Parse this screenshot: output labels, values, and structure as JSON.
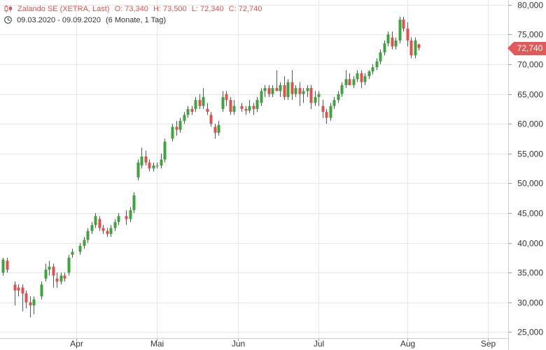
{
  "header": {
    "instrument": "Zalando SE (XETRA, Last)",
    "open": "O: 73,340",
    "high": "H: 73,500",
    "low": "L: 72,340",
    "close": "C: 72,740",
    "range": "09.03.2020 - 09.09.2020",
    "period": "(6 Monate, 1 Tag)",
    "icon_1": "chart-type-icon",
    "icon_2": "clock-icon"
  },
  "last_badge": "72,740",
  "colors": {
    "up": "#3fa33f",
    "down": "#d9534f",
    "badge": "#e05a5a",
    "grid": "#e6e6e6"
  },
  "chart_data": {
    "type": "candlestick",
    "title": "",
    "xlabel": "",
    "ylabel": "",
    "ylim": [
      24000,
      80800
    ],
    "y_ticks": [
      "25,000",
      "30,000",
      "35,000",
      "40,000",
      "45,000",
      "50,000",
      "55,000",
      "60,000",
      "65,000",
      "70,000",
      "75,000",
      "80,000"
    ],
    "y_tick_values": [
      25000,
      30000,
      35000,
      40000,
      45000,
      50000,
      55000,
      60000,
      65000,
      70000,
      75000,
      80000
    ],
    "x_ticks": [
      "Apr",
      "Mai",
      "Jun",
      "Jul",
      "Aug",
      "Sep"
    ],
    "x_tick_index": [
      19,
      40,
      61,
      82,
      105,
      126
    ],
    "grid": true,
    "series": [
      {
        "candles": [
          [
            35000,
            37500,
            34500,
            37200
          ],
          [
            37000,
            37500,
            35000,
            35500
          ],
          [
            33000,
            33500,
            29500,
            32000
          ],
          [
            32500,
            33000,
            31000,
            32000
          ],
          [
            32500,
            33000,
            28500,
            31500
          ],
          [
            31500,
            32000,
            29000,
            30000
          ],
          [
            30000,
            31000,
            27500,
            29500
          ],
          [
            29500,
            31000,
            28000,
            30500
          ],
          [
            31000,
            33500,
            30500,
            33000
          ],
          [
            34000,
            36500,
            33500,
            35500
          ],
          [
            35500,
            37000,
            34500,
            36000
          ],
          [
            36000,
            36500,
            32500,
            34500
          ],
          [
            34000,
            35000,
            32500,
            33500
          ],
          [
            33500,
            35000,
            33000,
            34500
          ],
          [
            34500,
            35000,
            33500,
            34000
          ],
          [
            35000,
            38000,
            34500,
            37500
          ],
          [
            38000,
            39000,
            37500,
            38500
          ],
          [
            38500,
            40000,
            38000,
            39500
          ],
          [
            39500,
            41000,
            39000,
            40500
          ],
          [
            40500,
            42500,
            40000,
            42000
          ],
          [
            42000,
            43500,
            41500,
            43000
          ],
          [
            43000,
            45000,
            42500,
            44500
          ],
          [
            44000,
            44500,
            42000,
            42500
          ],
          [
            42500,
            43000,
            41500,
            42000
          ],
          [
            42000,
            42500,
            41000,
            41500
          ],
          [
            41500,
            43000,
            41000,
            42500
          ],
          [
            42500,
            44000,
            42000,
            43500
          ],
          [
            43500,
            45000,
            43000,
            44500
          ],
          [
            44500,
            45500,
            43000,
            44000
          ],
          [
            44000,
            46000,
            43500,
            45500
          ],
          [
            45500,
            48500,
            45000,
            48000
          ],
          [
            51000,
            54000,
            50500,
            53500
          ],
          [
            53000,
            56000,
            52500,
            54500
          ],
          [
            54500,
            55500,
            53000,
            53500
          ],
          [
            53500,
            54000,
            52000,
            52500
          ],
          [
            52500,
            53500,
            52000,
            53000
          ],
          [
            53000,
            53500,
            52500,
            53000
          ],
          [
            53000,
            55000,
            52500,
            54000
          ],
          [
            54000,
            57500,
            53500,
            57000
          ],
          [
            57500,
            60000,
            57000,
            59500
          ],
          [
            59500,
            60500,
            58000,
            59000
          ],
          [
            59000,
            61000,
            58500,
            60500
          ],
          [
            60500,
            62000,
            60000,
            61500
          ],
          [
            61500,
            63000,
            61000,
            62500
          ],
          [
            62500,
            63000,
            61500,
            62000
          ],
          [
            62500,
            64500,
            62000,
            64000
          ],
          [
            64000,
            65000,
            62500,
            63000
          ],
          [
            63000,
            66000,
            62500,
            64500
          ],
          [
            62500,
            63500,
            61500,
            62000
          ],
          [
            61500,
            62000,
            59500,
            60000
          ],
          [
            59500,
            60000,
            57500,
            58500
          ],
          [
            58500,
            60500,
            58000,
            59800
          ],
          [
            62500,
            65500,
            62000,
            64500
          ],
          [
            65000,
            65500,
            63000,
            64000
          ],
          [
            64000,
            64500,
            61500,
            62000
          ],
          [
            62000,
            64000,
            61500,
            63000
          ],
          [
            63000,
            63500,
            62000,
            62500
          ],
          [
            62500,
            63000,
            61500,
            62200
          ],
          [
            62200,
            64000,
            61800,
            63000
          ],
          [
            63000,
            63500,
            61500,
            62500
          ],
          [
            62500,
            64500,
            62000,
            64000
          ],
          [
            63500,
            66000,
            63000,
            65500
          ],
          [
            65500,
            66500,
            64500,
            66000
          ],
          [
            66000,
            66500,
            64500,
            65000
          ],
          [
            65000,
            66500,
            64500,
            66000
          ],
          [
            66000,
            69000,
            65500,
            65500
          ],
          [
            65500,
            67000,
            64500,
            66500
          ],
          [
            66500,
            68000,
            64000,
            64500
          ],
          [
            64500,
            67500,
            64000,
            67000
          ],
          [
            67000,
            69000,
            64000,
            65000
          ],
          [
            65000,
            66500,
            64500,
            66000
          ],
          [
            66000,
            67000,
            63000,
            65000
          ],
          [
            65000,
            66000,
            63500,
            65500
          ],
          [
            65500,
            66500,
            64500,
            66000
          ],
          [
            66000,
            66500,
            62500,
            63500
          ],
          [
            63500,
            65500,
            63000,
            64500
          ],
          [
            64500,
            65500,
            63000,
            65000
          ],
          [
            63000,
            64000,
            61000,
            62000
          ],
          [
            62000,
            62500,
            60000,
            61000
          ],
          [
            61000,
            63500,
            60500,
            63000
          ],
          [
            63000,
            64500,
            62500,
            64000
          ],
          [
            64000,
            65500,
            63500,
            65000
          ],
          [
            65000,
            67000,
            64500,
            66500
          ],
          [
            66500,
            69000,
            66000,
            67500
          ],
          [
            67500,
            68500,
            66500,
            66500
          ],
          [
            66500,
            68000,
            66000,
            67500
          ],
          [
            67500,
            69000,
            67000,
            68500
          ],
          [
            68500,
            69000,
            66000,
            67000
          ],
          [
            67000,
            68500,
            66500,
            68000
          ],
          [
            68000,
            69000,
            67500,
            68800
          ],
          [
            68800,
            70000,
            68300,
            69500
          ],
          [
            69500,
            71000,
            69000,
            70500
          ],
          [
            70500,
            72500,
            70000,
            72000
          ],
          [
            72000,
            74000,
            71500,
            73500
          ],
          [
            73500,
            75500,
            73000,
            75000
          ],
          [
            74500,
            75500,
            72500,
            73000
          ],
          [
            73000,
            74500,
            72500,
            74000
          ],
          [
            74000,
            78000,
            73500,
            77500
          ],
          [
            77500,
            78000,
            75500,
            76000
          ],
          [
            76000,
            77000,
            73000,
            74000
          ],
          [
            74000,
            74500,
            71000,
            71500
          ],
          [
            71500,
            74500,
            71000,
            74000
          ],
          [
            73340,
            73500,
            72340,
            72740
          ]
        ],
        "candle_x_index": [
          0,
          1,
          3,
          4,
          5,
          6,
          7,
          8,
          10,
          11,
          12,
          13,
          14,
          15,
          16,
          17,
          18,
          20,
          21,
          22,
          23,
          24,
          25,
          26,
          27,
          28,
          29,
          30,
          32,
          33,
          34,
          35,
          36,
          37,
          38,
          39,
          40,
          41,
          42,
          44,
          45,
          46,
          47,
          48,
          49,
          50,
          51,
          52,
          53,
          54,
          55,
          56,
          57,
          58,
          59,
          60,
          62,
          63,
          64,
          65,
          66,
          67,
          68,
          69,
          70,
          71,
          72,
          73,
          74,
          75,
          76,
          77,
          78,
          79,
          80,
          81,
          82,
          83,
          84,
          85,
          86,
          87,
          88,
          89,
          90,
          91,
          92,
          93,
          94,
          95,
          96,
          97,
          98,
          99,
          100,
          101,
          102,
          103,
          104,
          105,
          106,
          107,
          108
        ]
      }
    ]
  }
}
